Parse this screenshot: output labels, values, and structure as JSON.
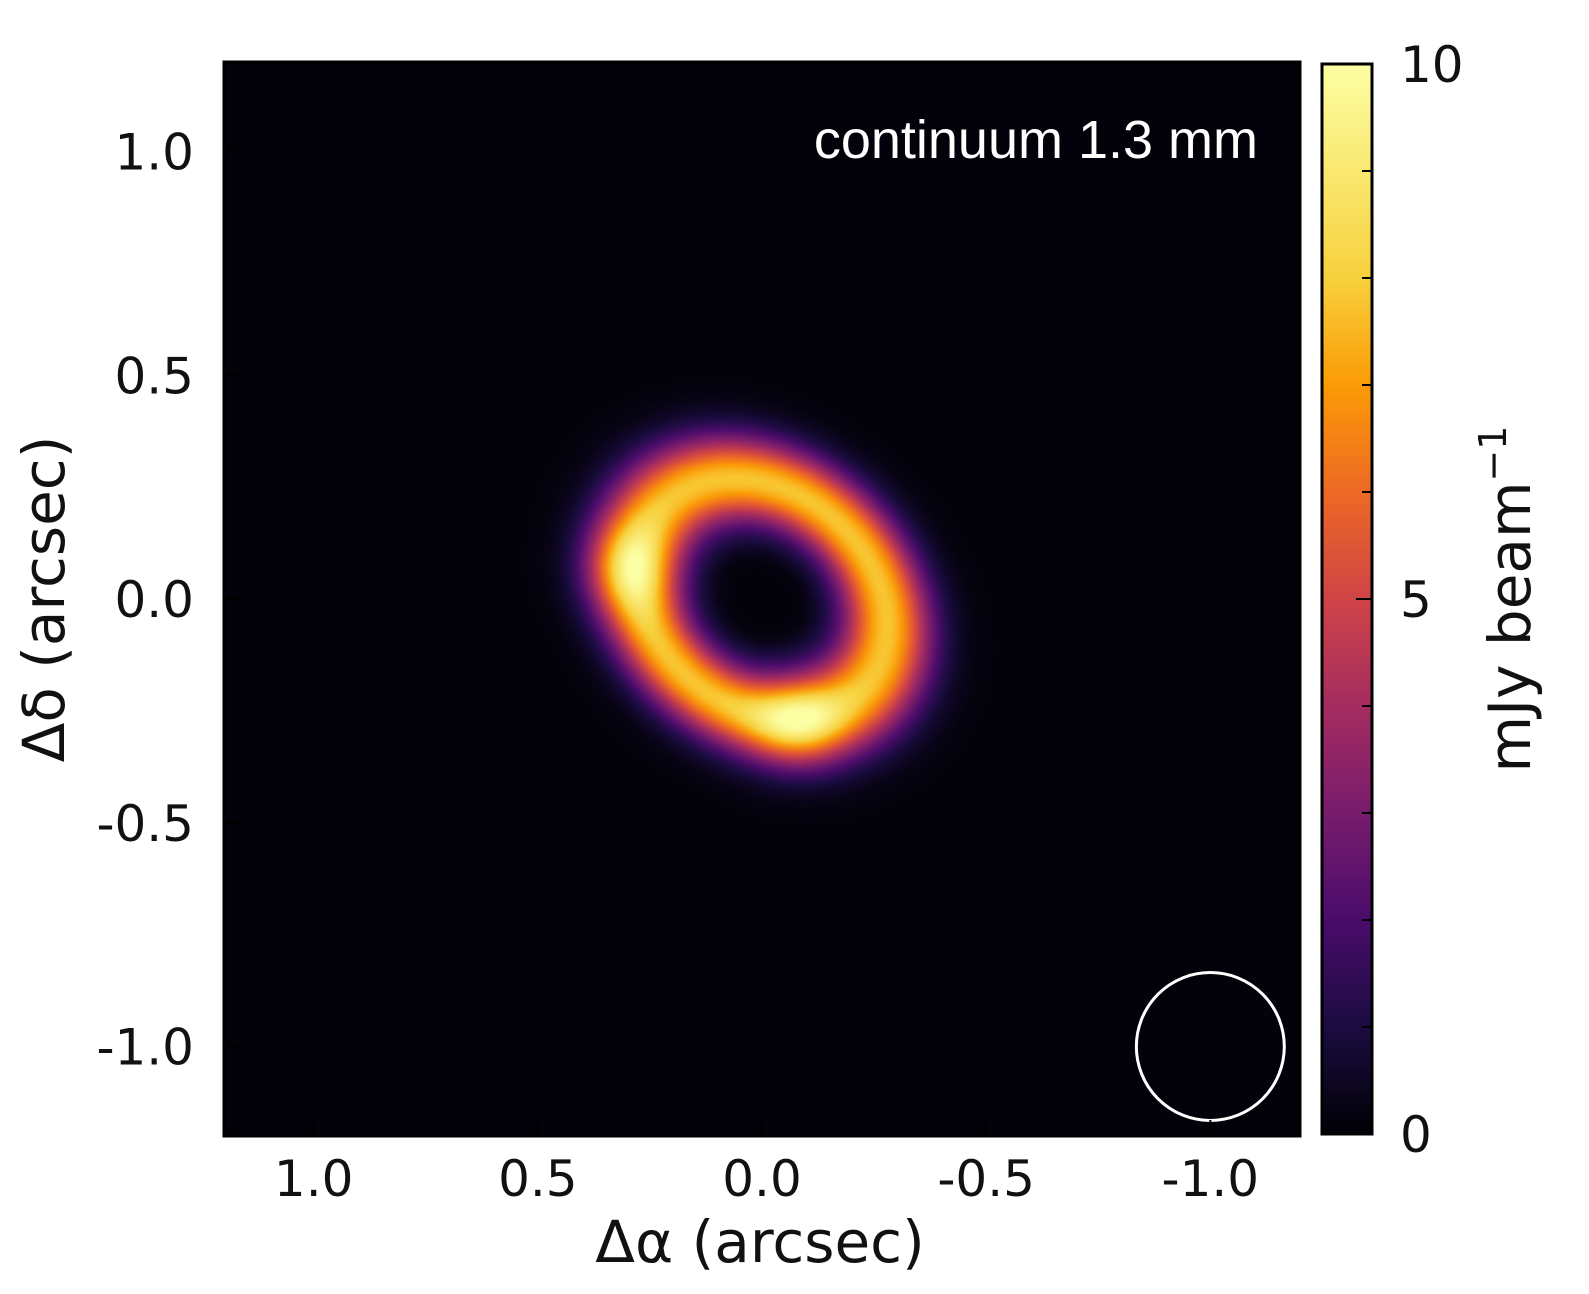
{
  "chart_data": {
    "type": "heatmap",
    "title": "",
    "annotation": "continuum 1.3 mm",
    "xlabel": "Δα (arcsec)",
    "ylabel": "Δδ (arcsec)",
    "xlim": [
      1.2,
      -1.2
    ],
    "ylim": [
      -1.2,
      1.2
    ],
    "x_ticks": [
      1.0,
      0.5,
      0.0,
      -0.5,
      -1.0
    ],
    "x_tick_labels": [
      "1.0",
      "0.5",
      "0.0",
      "-0.5",
      "-1.0"
    ],
    "y_ticks": [
      1.0,
      0.5,
      0.0,
      -0.5,
      -1.0
    ],
    "y_tick_labels": [
      "1.0",
      "0.5",
      "0.0",
      "-0.5",
      "-1.0"
    ],
    "colormap": "inferno",
    "colorbar": {
      "label": "mJy beam",
      "label_exponent": "−1",
      "range": [
        0,
        10
      ],
      "ticks": [
        0,
        5,
        10
      ],
      "tick_labels": [
        "0",
        "5",
        "10"
      ],
      "minor_ticks": [
        1,
        2,
        3,
        4,
        6,
        7,
        8,
        9
      ]
    },
    "ring": {
      "center": [
        0.0,
        0.0
      ],
      "ring_radius_arcsec": 0.28,
      "ring_width_arcsec": 0.1,
      "peak": 10,
      "bright_spots": [
        {
          "x": 0.3,
          "y": 0.07,
          "value": 9.5
        },
        {
          "x": -0.08,
          "y": -0.27,
          "value": 10
        }
      ],
      "center_value": 0.3
    },
    "beam": {
      "x": -1.0,
      "y": -1.0,
      "radius_arcsec": 0.075
    },
    "grid": false,
    "background": "#03020a"
  }
}
